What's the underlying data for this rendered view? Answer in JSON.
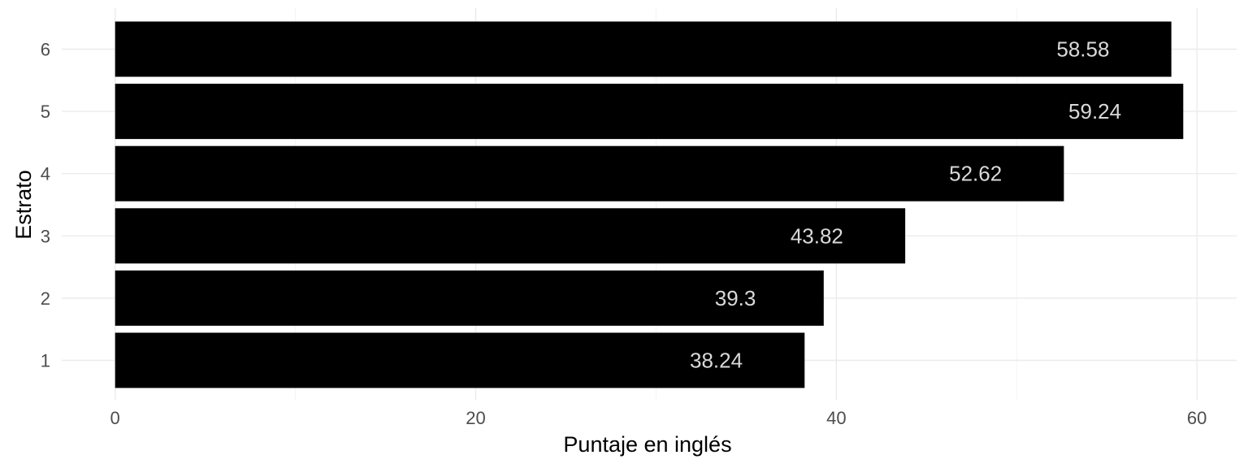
{
  "chart_data": {
    "type": "bar",
    "orientation": "horizontal",
    "categories": [
      "1",
      "2",
      "3",
      "4",
      "5",
      "6"
    ],
    "values": [
      38.24,
      39.3,
      43.82,
      52.62,
      59.24,
      58.58
    ],
    "value_labels": [
      "38.24",
      "39.3",
      "43.82",
      "52.62",
      "59.24",
      "58.58"
    ],
    "title": "",
    "xlabel": "Puntaje en inglés",
    "ylabel": "Estrato",
    "xlim": [
      -2.96,
      62.2
    ],
    "x_ticks": [
      0,
      20,
      40,
      60
    ],
    "x_tick_labels": [
      "0",
      "20",
      "40",
      "60"
    ],
    "x_minor_ticks": [
      10,
      30,
      50
    ],
    "grid": true,
    "legend": "none",
    "colors": {
      "bar": "#000000",
      "data_label": "#d9d9d9",
      "grid_major": "#ebebeb",
      "tick_label": "#4d4d4d",
      "background": "#ffffff"
    }
  }
}
